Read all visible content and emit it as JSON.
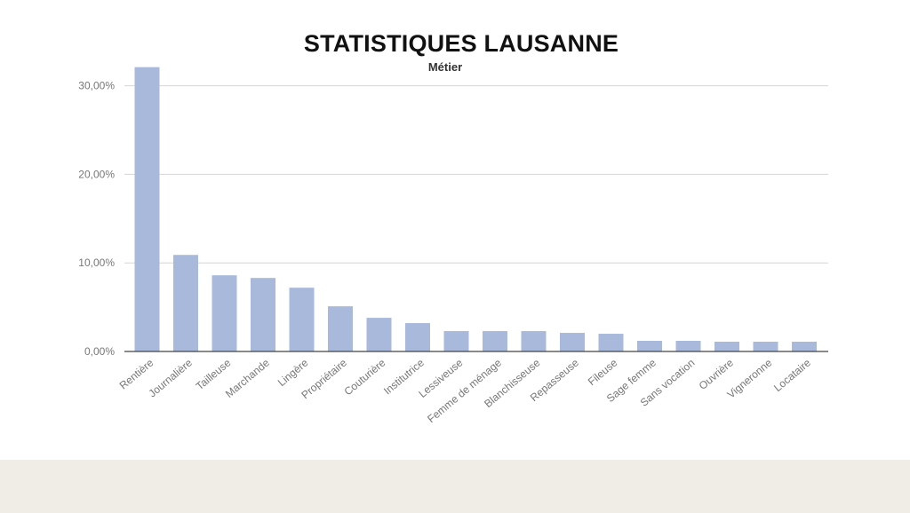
{
  "chart_data": {
    "type": "bar",
    "title": "STATISTIQUES LAUSANNE",
    "subtitle": "Métier",
    "xlabel": "",
    "ylabel": "",
    "ylim": [
      0,
      32
    ],
    "yticks": [
      0,
      10,
      20,
      30
    ],
    "ytick_labels": [
      "0,00%",
      "10,00%",
      "20,00%",
      "30,00%"
    ],
    "grid": true,
    "bar_color": "#a9b9dc",
    "categories": [
      "Rentière",
      "Journalière",
      "Tailleuse",
      "Marchande",
      "Lingère",
      "Propriétaire",
      "Couturière",
      "Institutrice",
      "Lessiveuse",
      "Femme de ménage",
      "Blanchisseuse",
      "Repasseuse",
      "Fileuse",
      "Sage femme",
      "Sans vocation",
      "Ouvrière",
      "Vigneronne",
      "Locataire"
    ],
    "values": [
      32.1,
      10.9,
      8.6,
      8.3,
      7.2,
      5.1,
      3.8,
      3.2,
      2.3,
      2.3,
      2.3,
      2.1,
      2.0,
      1.2,
      1.2,
      1.1,
      1.1,
      1.1
    ]
  }
}
